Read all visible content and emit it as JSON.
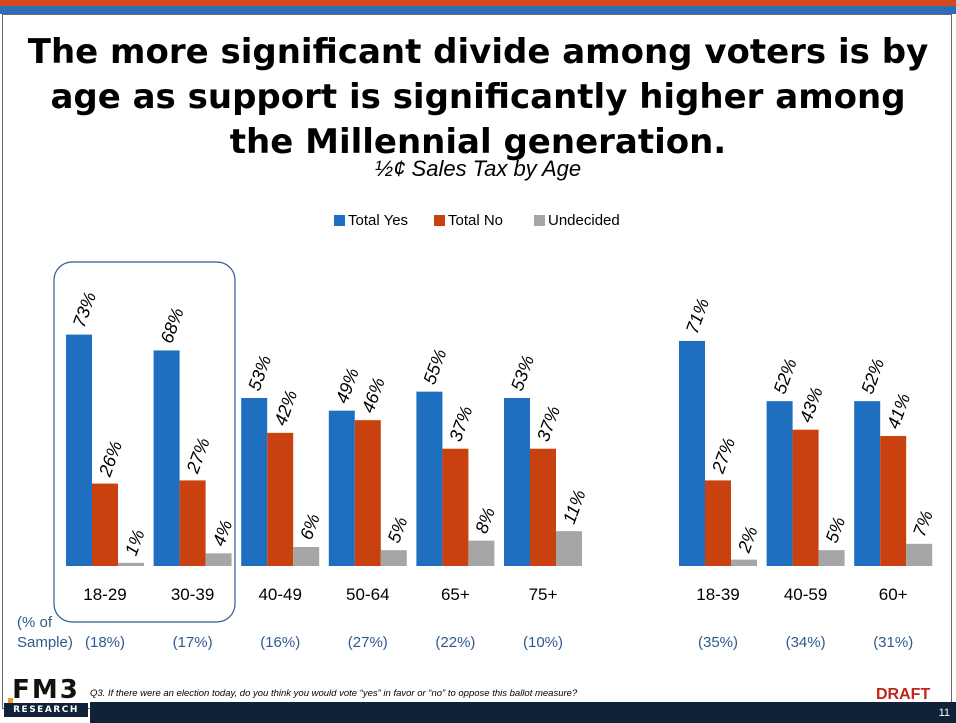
{
  "title": "The more significant divide among voters is by age as support is significantly higher among the Millennial generation.",
  "subtitle": "½¢ Sales Tax by Age",
  "footnote": "Q3. If there were an election today, do you think you would vote “yes” in favor or “no” to oppose this ballot measure?",
  "draft_label": "DRAFT",
  "page_number": "11",
  "logo": {
    "main": "FM3",
    "sub": "RESEARCH"
  },
  "sample_label_line1": "(% of",
  "sample_label_line2": "Sample)",
  "colors": {
    "yes": "#1f6fc0",
    "no": "#c9410f",
    "undecided": "#a6a6a6",
    "sample_text": "#2e5a8e",
    "highlight_border": "#2e5a8e"
  },
  "chart_data": {
    "type": "bar",
    "legend_position": "top",
    "grid": false,
    "value_suffix": "%",
    "ylim": [
      0,
      100
    ],
    "series": [
      {
        "name": "Total Yes"
      },
      {
        "name": "Total No"
      },
      {
        "name": "Undecided"
      }
    ],
    "groups": [
      {
        "categories": [
          "18-29",
          "30-39",
          "40-49",
          "50-64",
          "65+",
          "75+"
        ],
        "sample": [
          "(18%)",
          "(17%)",
          "(16%)",
          "(27%)",
          "(22%)",
          "(10%)"
        ],
        "values": [
          [
            73,
            68,
            53,
            49,
            55,
            53
          ],
          [
            26,
            27,
            42,
            46,
            37,
            37
          ],
          [
            1,
            4,
            6,
            5,
            8,
            11
          ]
        ]
      },
      {
        "categories": [
          "18-39",
          "40-59",
          "60+"
        ],
        "sample": [
          "(35%)",
          "(34%)",
          "(31%)"
        ],
        "values": [
          [
            71,
            52,
            52
          ],
          [
            27,
            43,
            41
          ],
          [
            2,
            5,
            7
          ]
        ]
      }
    ],
    "highlighted_categories": [
      "18-29",
      "30-39"
    ]
  }
}
